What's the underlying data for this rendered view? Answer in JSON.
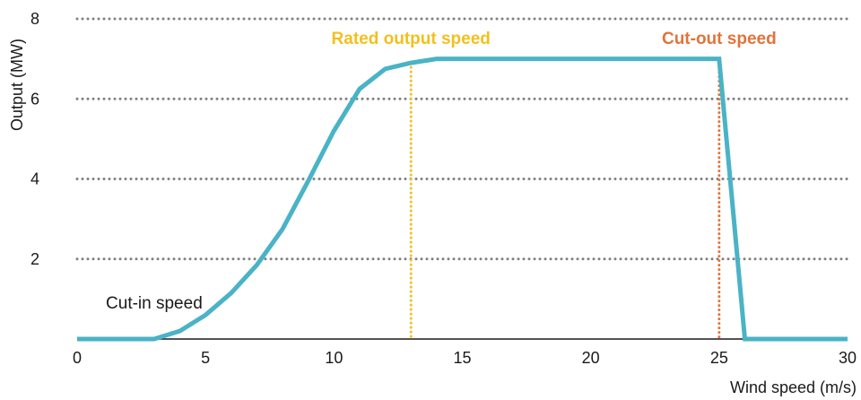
{
  "chart_data": {
    "type": "line",
    "title": "",
    "xlabel": "Wind speed (m/s)",
    "ylabel": "Output (MW)",
    "xlim": [
      0,
      30
    ],
    "ylim": [
      0,
      8
    ],
    "x_ticks": [
      0,
      5,
      10,
      15,
      20,
      25,
      30
    ],
    "y_ticks": [
      2,
      4,
      6,
      8
    ],
    "grid": "horizontal-dotted",
    "colors": {
      "curve": "#4ab3c6",
      "grid": "#808080",
      "axis": "#1a1a1a",
      "rated": "#f2c01e",
      "cutout": "#e2733b"
    },
    "series": [
      {
        "x": [
          0,
          3,
          4,
          5,
          6,
          7,
          8,
          9,
          10,
          11,
          12,
          13,
          14,
          15,
          20,
          25,
          26,
          30
        ],
        "values": [
          0,
          0,
          0.2,
          0.6,
          1.15,
          1.85,
          2.75,
          3.95,
          5.2,
          6.25,
          6.75,
          6.9,
          7.0,
          7.0,
          7.0,
          7.0,
          0,
          0
        ]
      }
    ],
    "annotations": [
      {
        "label": "Cut-in speed",
        "x": 3,
        "style": "plain"
      },
      {
        "label": "Rated output speed",
        "x": 13,
        "style": "vline",
        "color": "#f2c01e"
      },
      {
        "label": "Cut-out speed",
        "x": 25,
        "style": "vline",
        "color": "#e2733b"
      }
    ]
  }
}
